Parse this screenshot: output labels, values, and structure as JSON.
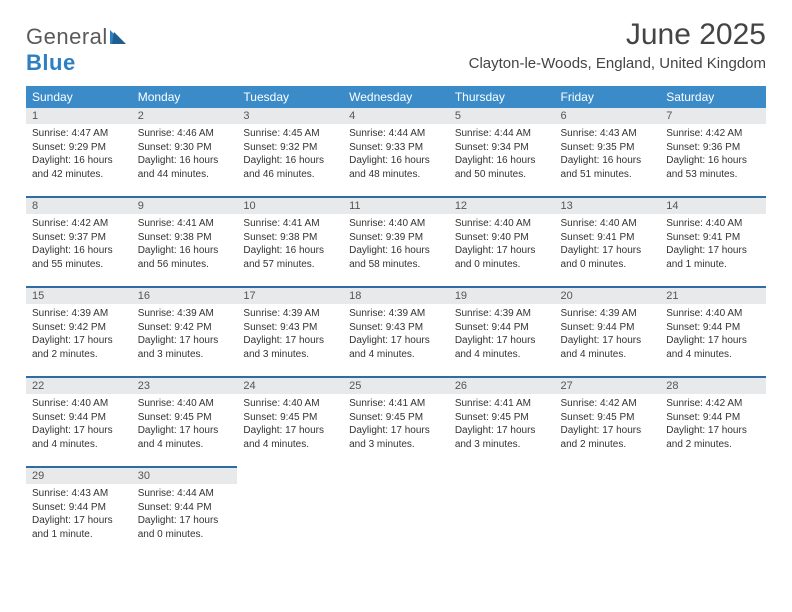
{
  "brand": {
    "part1": "General",
    "part2": "Blue"
  },
  "title": "June 2025",
  "location": "Clayton-le-Woods, England, United Kingdom",
  "colors": {
    "header_bg": "#3b8bc9",
    "week_divider": "#2d6da3",
    "daynum_bg": "#e7e9eb",
    "text": "#333333",
    "brand_gray": "#5a5a5a",
    "brand_blue": "#2d7fc1"
  },
  "day_headers": [
    "Sunday",
    "Monday",
    "Tuesday",
    "Wednesday",
    "Thursday",
    "Friday",
    "Saturday"
  ],
  "days": {
    "1": {
      "sunrise": "Sunrise: 4:47 AM",
      "sunset": "Sunset: 9:29 PM",
      "day1": "Daylight: 16 hours",
      "day2": "and 42 minutes."
    },
    "2": {
      "sunrise": "Sunrise: 4:46 AM",
      "sunset": "Sunset: 9:30 PM",
      "day1": "Daylight: 16 hours",
      "day2": "and 44 minutes."
    },
    "3": {
      "sunrise": "Sunrise: 4:45 AM",
      "sunset": "Sunset: 9:32 PM",
      "day1": "Daylight: 16 hours",
      "day2": "and 46 minutes."
    },
    "4": {
      "sunrise": "Sunrise: 4:44 AM",
      "sunset": "Sunset: 9:33 PM",
      "day1": "Daylight: 16 hours",
      "day2": "and 48 minutes."
    },
    "5": {
      "sunrise": "Sunrise: 4:44 AM",
      "sunset": "Sunset: 9:34 PM",
      "day1": "Daylight: 16 hours",
      "day2": "and 50 minutes."
    },
    "6": {
      "sunrise": "Sunrise: 4:43 AM",
      "sunset": "Sunset: 9:35 PM",
      "day1": "Daylight: 16 hours",
      "day2": "and 51 minutes."
    },
    "7": {
      "sunrise": "Sunrise: 4:42 AM",
      "sunset": "Sunset: 9:36 PM",
      "day1": "Daylight: 16 hours",
      "day2": "and 53 minutes."
    },
    "8": {
      "sunrise": "Sunrise: 4:42 AM",
      "sunset": "Sunset: 9:37 PM",
      "day1": "Daylight: 16 hours",
      "day2": "and 55 minutes."
    },
    "9": {
      "sunrise": "Sunrise: 4:41 AM",
      "sunset": "Sunset: 9:38 PM",
      "day1": "Daylight: 16 hours",
      "day2": "and 56 minutes."
    },
    "10": {
      "sunrise": "Sunrise: 4:41 AM",
      "sunset": "Sunset: 9:38 PM",
      "day1": "Daylight: 16 hours",
      "day2": "and 57 minutes."
    },
    "11": {
      "sunrise": "Sunrise: 4:40 AM",
      "sunset": "Sunset: 9:39 PM",
      "day1": "Daylight: 16 hours",
      "day2": "and 58 minutes."
    },
    "12": {
      "sunrise": "Sunrise: 4:40 AM",
      "sunset": "Sunset: 9:40 PM",
      "day1": "Daylight: 17 hours",
      "day2": "and 0 minutes."
    },
    "13": {
      "sunrise": "Sunrise: 4:40 AM",
      "sunset": "Sunset: 9:41 PM",
      "day1": "Daylight: 17 hours",
      "day2": "and 0 minutes."
    },
    "14": {
      "sunrise": "Sunrise: 4:40 AM",
      "sunset": "Sunset: 9:41 PM",
      "day1": "Daylight: 17 hours",
      "day2": "and 1 minute."
    },
    "15": {
      "sunrise": "Sunrise: 4:39 AM",
      "sunset": "Sunset: 9:42 PM",
      "day1": "Daylight: 17 hours",
      "day2": "and 2 minutes."
    },
    "16": {
      "sunrise": "Sunrise: 4:39 AM",
      "sunset": "Sunset: 9:42 PM",
      "day1": "Daylight: 17 hours",
      "day2": "and 3 minutes."
    },
    "17": {
      "sunrise": "Sunrise: 4:39 AM",
      "sunset": "Sunset: 9:43 PM",
      "day1": "Daylight: 17 hours",
      "day2": "and 3 minutes."
    },
    "18": {
      "sunrise": "Sunrise: 4:39 AM",
      "sunset": "Sunset: 9:43 PM",
      "day1": "Daylight: 17 hours",
      "day2": "and 4 minutes."
    },
    "19": {
      "sunrise": "Sunrise: 4:39 AM",
      "sunset": "Sunset: 9:44 PM",
      "day1": "Daylight: 17 hours",
      "day2": "and 4 minutes."
    },
    "20": {
      "sunrise": "Sunrise: 4:39 AM",
      "sunset": "Sunset: 9:44 PM",
      "day1": "Daylight: 17 hours",
      "day2": "and 4 minutes."
    },
    "21": {
      "sunrise": "Sunrise: 4:40 AM",
      "sunset": "Sunset: 9:44 PM",
      "day1": "Daylight: 17 hours",
      "day2": "and 4 minutes."
    },
    "22": {
      "sunrise": "Sunrise: 4:40 AM",
      "sunset": "Sunset: 9:44 PM",
      "day1": "Daylight: 17 hours",
      "day2": "and 4 minutes."
    },
    "23": {
      "sunrise": "Sunrise: 4:40 AM",
      "sunset": "Sunset: 9:45 PM",
      "day1": "Daylight: 17 hours",
      "day2": "and 4 minutes."
    },
    "24": {
      "sunrise": "Sunrise: 4:40 AM",
      "sunset": "Sunset: 9:45 PM",
      "day1": "Daylight: 17 hours",
      "day2": "and 4 minutes."
    },
    "25": {
      "sunrise": "Sunrise: 4:41 AM",
      "sunset": "Sunset: 9:45 PM",
      "day1": "Daylight: 17 hours",
      "day2": "and 3 minutes."
    },
    "26": {
      "sunrise": "Sunrise: 4:41 AM",
      "sunset": "Sunset: 9:45 PM",
      "day1": "Daylight: 17 hours",
      "day2": "and 3 minutes."
    },
    "27": {
      "sunrise": "Sunrise: 4:42 AM",
      "sunset": "Sunset: 9:45 PM",
      "day1": "Daylight: 17 hours",
      "day2": "and 2 minutes."
    },
    "28": {
      "sunrise": "Sunrise: 4:42 AM",
      "sunset": "Sunset: 9:44 PM",
      "day1": "Daylight: 17 hours",
      "day2": "and 2 minutes."
    },
    "29": {
      "sunrise": "Sunrise: 4:43 AM",
      "sunset": "Sunset: 9:44 PM",
      "day1": "Daylight: 17 hours",
      "day2": "and 1 minute."
    },
    "30": {
      "sunrise": "Sunrise: 4:44 AM",
      "sunset": "Sunset: 9:44 PM",
      "day1": "Daylight: 17 hours",
      "day2": "and 0 minutes."
    }
  },
  "layout": [
    [
      1,
      2,
      3,
      4,
      5,
      6,
      7
    ],
    [
      8,
      9,
      10,
      11,
      12,
      13,
      14
    ],
    [
      15,
      16,
      17,
      18,
      19,
      20,
      21
    ],
    [
      22,
      23,
      24,
      25,
      26,
      27,
      28
    ],
    [
      29,
      30,
      null,
      null,
      null,
      null,
      null
    ]
  ]
}
